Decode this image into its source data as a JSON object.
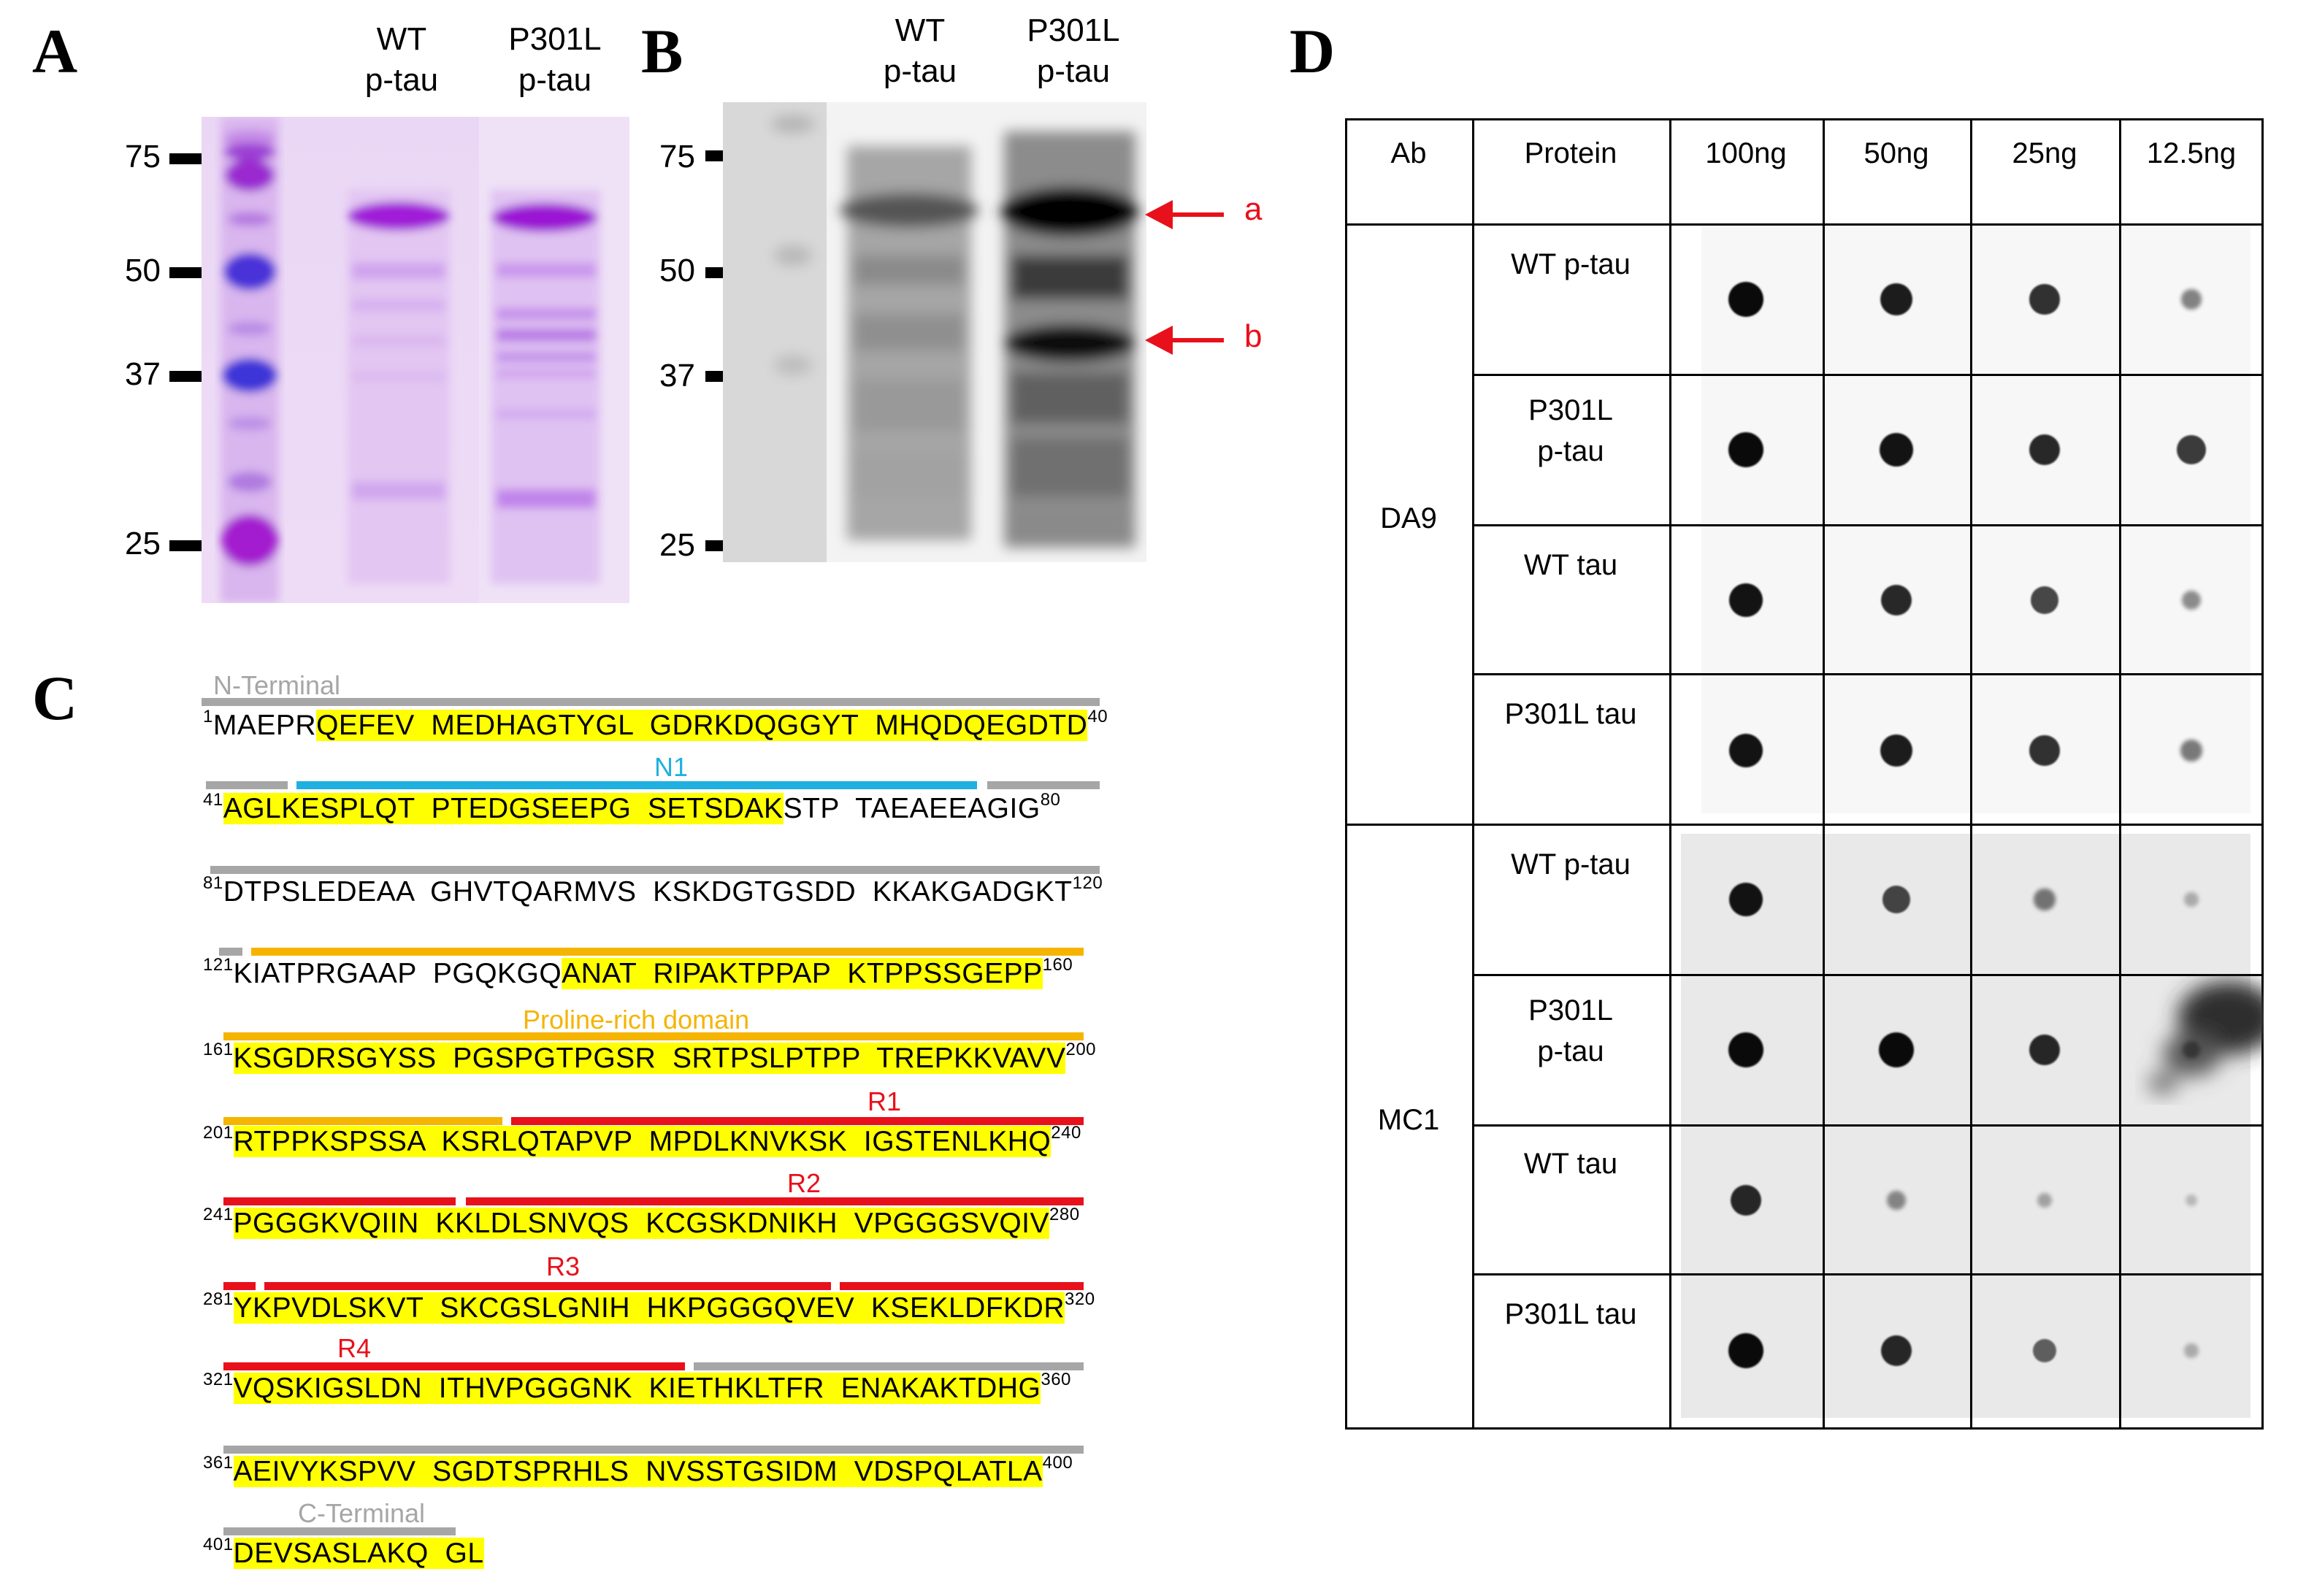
{
  "panels": {
    "a": "A",
    "b": "B",
    "c": "C",
    "d": "D"
  },
  "gel": {
    "lanes": [
      "WT\np-tau",
      "P301L\np-tau"
    ],
    "markers": [
      "75",
      "50",
      "37",
      "25"
    ]
  },
  "western": {
    "lanes": [
      "WT\np-tau",
      "P301L\np-tau"
    ],
    "markers": [
      "75",
      "50",
      "37",
      "25"
    ],
    "arrows": [
      "a",
      "b"
    ]
  },
  "sequence": {
    "domains": {
      "n_terminal": "N-Terminal",
      "n1": "N1",
      "proline": "Proline-rich domain",
      "r1": "R1",
      "r2": "R2",
      "r3": "R3",
      "r4": "R4",
      "c_terminal": "C-Terminal"
    },
    "lines": [
      {
        "start": "1",
        "end": "40"
      },
      {
        "start": "41",
        "end": "80"
      },
      {
        "start": "81",
        "end": "120"
      },
      {
        "start": "121",
        "end": "160"
      },
      {
        "start": "161",
        "end": "200"
      },
      {
        "start": "201",
        "end": "240"
      },
      {
        "start": "241",
        "end": "280"
      },
      {
        "start": "281",
        "end": "320"
      },
      {
        "start": "321",
        "end": "360"
      },
      {
        "start": "361",
        "end": "400"
      },
      {
        "start": "401",
        "end": ""
      }
    ],
    "segments": {
      "l1_plain": "MAEPR",
      "l1_hl": "QEFEV  MEDHAGTYGL  GDRKDQGGYT  MHQDQEGDTD",
      "l2_hl": "AGLKESPLQT  PTEDGSEEPG  SETSDAK",
      "l2_plain": "STP  TAEAEEAGIG",
      "l3_plain": "DTPSLEDEAA  GHVTQARMVS  KSKDGTGSDD  KKAKGADGKT",
      "l4_plain": "KIATPRGAAP  PGQKGQ",
      "l4_hl": "ANAT  RIPAKTPPAP  KTPPSSGEPP",
      "l5_hl": "KSGDRSGYSS  PGSPGTPGSR  SRTPSLPTPP  TREPKKVAVV",
      "l6_hl": "RTPPKSPSSA  KSRLQTAPVP  MPDLKNVKSK  IGSTENLKHQ",
      "l7_hl": "PGGGKVQIIN  KKLDLSNVQS  KCGSKDNIKH  VPGGGSVQIV",
      "l8_hl": "YKPVDLSKVT  SKCGSLGNIH  HKPGGGQVEV  KSEKLDFKDR",
      "l9_hl": "VQSKIGSLDN  ITHVPGGGNK  KIETHKLTFR  ENAKAKTDHG",
      "l10_hl": "AEIVYKSPVV  SGDTSPRHLS  NVSSTGSIDM  VDSPQLATLA",
      "l11_hl": "DEVSASLAKQ  GL"
    }
  },
  "dotblot": {
    "headers": [
      "Ab",
      "Protein",
      "100ng",
      "50ng",
      "25ng",
      "12.5ng"
    ],
    "antibodies": [
      "DA9",
      "MC1"
    ],
    "proteins": [
      "WT p-tau",
      "P301L\np-tau",
      "WT tau",
      "P301L tau"
    ],
    "intensity": {
      "DA9": [
        [
          1.0,
          0.9,
          0.8,
          0.4
        ],
        [
          1.0,
          0.95,
          0.85,
          0.75
        ],
        [
          0.95,
          0.85,
          0.7,
          0.35
        ],
        [
          0.95,
          0.9,
          0.8,
          0.45
        ]
      ],
      "MC1": [
        [
          0.95,
          0.7,
          0.45,
          0.15
        ],
        [
          1.0,
          1.0,
          0.85,
          0.3
        ],
        [
          0.85,
          0.35,
          0.2,
          0.08
        ],
        [
          1.0,
          0.85,
          0.55,
          0.15
        ]
      ]
    },
    "colors": {
      "dot": "#0a0a0a",
      "membrane_da9": "#f7f7f7",
      "membrane_mc1": "#e9e9e9"
    }
  },
  "colors": {
    "highlight": "#ffff00",
    "terminal": "#a6a6a6",
    "n1": "#1fb0e0",
    "proline": "#f5b400",
    "repeat": "#e8101a",
    "arrow": "#e8101a"
  }
}
